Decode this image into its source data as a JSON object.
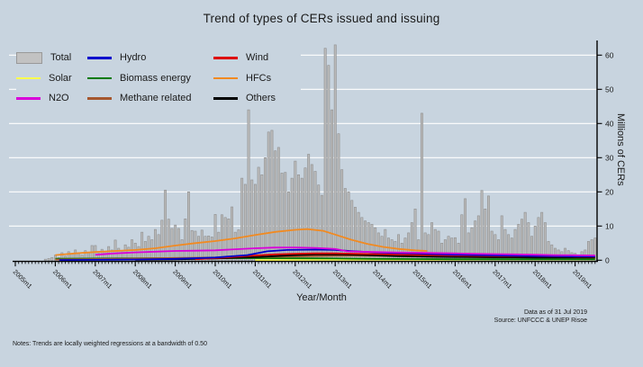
{
  "title": "Trend of types of CERs issued and issuing",
  "background_color": "#c8d4df",
  "text_color": "#1a1a1a",
  "gridline_color": "#ffffff",
  "legend": {
    "items": [
      {
        "label": "Total",
        "type": "box",
        "color": "#c2c2c2",
        "border": "#999999"
      },
      {
        "label": "Hydro",
        "type": "line",
        "color": "#0000cc"
      },
      {
        "label": "Wind",
        "type": "line",
        "color": "#dd0000"
      },
      {
        "label": "Solar",
        "type": "line",
        "color": "#ffff4d"
      },
      {
        "label": "Biomass energy",
        "type": "line",
        "color": "#007a00"
      },
      {
        "label": "HFCs",
        "type": "line",
        "color": "#f18a21"
      },
      {
        "label": "N2O",
        "type": "line",
        "color": "#d900d9"
      },
      {
        "label": "Methane related",
        "type": "line",
        "color": "#a5572e"
      },
      {
        "label": "Others",
        "type": "line",
        "color": "#000000"
      }
    ]
  },
  "footnotes": {
    "notes": "Notes: Trends are locally weighted regressions at a bandwidth of 0.50",
    "data_as_of": "Data as of 31 Jul 2019",
    "source": "Source: UNFCCC & UNEP Risoe"
  },
  "chart_data": {
    "type": "bar",
    "subtype": "monthly bars with lowess trend lines",
    "title": "Trend of types of CERs issued and issuing",
    "xlabel": "Year/Month",
    "ylabel": "Millions of CERs",
    "y_axis": {
      "side": "right",
      "ticks": [
        0,
        10,
        20,
        30,
        40,
        50,
        60
      ],
      "ylim": [
        0,
        63
      ]
    },
    "x_axis": {
      "tick_labels": [
        "2005m1",
        "2006m1",
        "2007m1",
        "2008m1",
        "2009m1",
        "2010m1",
        "2011m1",
        "2012m1",
        "2013m1",
        "2014m1",
        "2015m1",
        "2016m1",
        "2017m1",
        "2018m1",
        "2019m1"
      ],
      "minor_ticks": "monthly",
      "range_start": "2005m1",
      "range_end": "2019m7"
    },
    "bars": {
      "name": "Total",
      "start": "2005m1",
      "frequency": "monthly",
      "fill": "#bababa",
      "border": "#8f8f8f",
      "values": [
        0,
        0,
        0,
        0,
        0,
        0,
        0,
        0,
        0,
        0.3,
        0.5,
        0.8,
        1.5,
        0.8,
        2.2,
        1.2,
        2.5,
        1.8,
        3,
        2,
        1.5,
        2.8,
        2.2,
        4.3,
        4.3,
        2,
        3.2,
        2.5,
        4,
        3,
        5.9,
        3.5,
        2.8,
        4.5,
        3.8,
        6,
        5,
        4,
        8.2,
        5.5,
        7,
        6,
        9,
        7.5,
        11.7,
        20.5,
        12,
        9.3,
        10.3,
        9.3,
        6,
        12.1,
        20,
        8.7,
        8.5,
        7,
        8.8,
        7,
        7.1,
        6.8,
        13.4,
        8.2,
        13.3,
        12.5,
        12.1,
        15.6,
        8.2,
        8.9,
        24,
        22.2,
        44,
        23.5,
        22.2,
        27.2,
        25,
        30,
        37.5,
        38,
        32,
        33,
        25.5,
        25.7,
        20,
        24,
        29,
        25,
        24,
        27,
        31,
        28,
        26,
        22,
        19,
        62,
        57,
        44,
        63,
        37,
        26.5,
        21,
        20,
        17.5,
        15.5,
        14,
        12.5,
        11.5,
        11,
        10.5,
        9.5,
        8,
        7,
        9,
        6.5,
        6,
        5.5,
        7.5,
        5,
        6.5,
        8,
        11,
        15,
        6,
        43,
        8,
        7.5,
        11,
        9,
        8.5,
        5,
        6,
        7,
        6.5,
        6.6,
        5,
        13.3,
        18,
        8,
        9.5,
        11.5,
        13,
        20.4,
        15,
        18.8,
        8.5,
        7.5,
        6,
        13,
        9,
        7.5,
        6.5,
        9,
        10.5,
        12,
        14,
        11,
        7,
        10,
        12.5,
        14,
        11,
        5.5,
        4.5,
        3.5,
        3,
        2.5,
        3.5,
        2.8,
        2.2,
        2,
        1.5,
        2.5,
        3,
        5.5,
        6,
        6.5
      ]
    },
    "series": [
      {
        "name": "HFCs",
        "color": "#f18a21",
        "points": [
          [
            2006.0,
            1.5
          ],
          [
            2006.5,
            2.0
          ],
          [
            2007.0,
            2.4
          ],
          [
            2007.5,
            2.7
          ],
          [
            2008.0,
            3.0
          ],
          [
            2008.5,
            3.5
          ],
          [
            2009.0,
            4.3
          ],
          [
            2009.5,
            5.0
          ],
          [
            2010.0,
            5.6
          ],
          [
            2010.5,
            6.4
          ],
          [
            2011.0,
            7.4
          ],
          [
            2011.5,
            8.3
          ],
          [
            2012.0,
            8.9
          ],
          [
            2012.3,
            9.1
          ],
          [
            2012.7,
            8.6
          ],
          [
            2013.0,
            7.5
          ],
          [
            2013.4,
            6.0
          ],
          [
            2013.8,
            4.8
          ],
          [
            2014.2,
            3.9
          ],
          [
            2014.6,
            3.3
          ],
          [
            2015.0,
            2.9
          ],
          [
            2015.3,
            2.7
          ]
        ]
      },
      {
        "name": "Solar",
        "color": "#ffff4d",
        "points": [
          [
            2011.0,
            0.05
          ],
          [
            2012.0,
            0.08
          ],
          [
            2013.0,
            0.1
          ],
          [
            2014.0,
            0.1
          ],
          [
            2015.0,
            0.12
          ],
          [
            2016.0,
            0.15
          ],
          [
            2017.0,
            0.2
          ],
          [
            2018.0,
            0.2
          ],
          [
            2019.5,
            0.25
          ]
        ]
      },
      {
        "name": "Biomass energy",
        "color": "#007a00",
        "points": [
          [
            2006.0,
            0.45
          ],
          [
            2007.0,
            0.5
          ],
          [
            2008.0,
            0.55
          ],
          [
            2009.0,
            0.6
          ],
          [
            2010.0,
            0.6
          ],
          [
            2011.0,
            0.6
          ],
          [
            2012.0,
            0.55
          ],
          [
            2013.0,
            0.5
          ],
          [
            2014.0,
            0.4
          ],
          [
            2015.0,
            0.35
          ],
          [
            2016.0,
            0.3
          ],
          [
            2017.0,
            0.3
          ],
          [
            2018.0,
            0.3
          ],
          [
            2019.5,
            0.3
          ]
        ]
      },
      {
        "name": "Methane related",
        "color": "#a5572e",
        "points": [
          [
            2006.0,
            0.2
          ],
          [
            2007.0,
            0.35
          ],
          [
            2008.0,
            0.5
          ],
          [
            2009.0,
            0.65
          ],
          [
            2010.0,
            0.8
          ],
          [
            2011.0,
            0.95
          ],
          [
            2012.0,
            1.1
          ],
          [
            2012.5,
            1.2
          ],
          [
            2013.0,
            1.3
          ],
          [
            2013.5,
            1.35
          ],
          [
            2014.0,
            1.3
          ],
          [
            2014.5,
            1.25
          ],
          [
            2015.0,
            1.2
          ],
          [
            2015.5,
            1.1
          ],
          [
            2016.0,
            1.0
          ],
          [
            2016.5,
            0.95
          ],
          [
            2017.0,
            0.9
          ],
          [
            2017.5,
            0.9
          ],
          [
            2018.0,
            0.9
          ],
          [
            2018.5,
            0.95
          ],
          [
            2019.0,
            1.0
          ],
          [
            2019.5,
            1.0
          ]
        ]
      },
      {
        "name": "Others",
        "color": "#000000",
        "points": [
          [
            2008.0,
            0.1
          ],
          [
            2009.0,
            0.25
          ],
          [
            2010.0,
            0.5
          ],
          [
            2010.5,
            0.7
          ],
          [
            2011.0,
            0.9
          ],
          [
            2011.5,
            1.2
          ],
          [
            2012.0,
            1.5
          ],
          [
            2012.5,
            1.65
          ],
          [
            2013.0,
            1.7
          ],
          [
            2013.5,
            1.6
          ],
          [
            2014.0,
            1.4
          ],
          [
            2014.5,
            1.2
          ],
          [
            2015.0,
            1.1
          ],
          [
            2015.5,
            1.0
          ],
          [
            2016.0,
            0.95
          ],
          [
            2016.5,
            0.9
          ],
          [
            2017.0,
            0.85
          ],
          [
            2017.5,
            0.85
          ],
          [
            2018.0,
            0.8
          ],
          [
            2018.5,
            0.8
          ],
          [
            2019.0,
            0.8
          ],
          [
            2019.5,
            0.8
          ]
        ]
      },
      {
        "name": "Wind",
        "color": "#dd0000",
        "points": [
          [
            2009.5,
            0.3
          ],
          [
            2010.0,
            0.6
          ],
          [
            2010.5,
            1.0
          ],
          [
            2011.0,
            1.4
          ],
          [
            2011.5,
            1.7
          ],
          [
            2012.0,
            1.9
          ],
          [
            2012.5,
            2.0
          ],
          [
            2013.0,
            2.0
          ],
          [
            2013.5,
            1.9
          ],
          [
            2014.0,
            1.8
          ],
          [
            2014.5,
            1.7
          ],
          [
            2015.0,
            1.6
          ],
          [
            2015.5,
            1.5
          ],
          [
            2016.0,
            1.4
          ],
          [
            2016.5,
            1.3
          ],
          [
            2017.0,
            1.25
          ],
          [
            2017.5,
            1.2
          ],
          [
            2018.0,
            1.15
          ],
          [
            2018.5,
            1.1
          ],
          [
            2019.0,
            1.05
          ],
          [
            2019.5,
            1.0
          ]
        ]
      },
      {
        "name": "Hydro",
        "color": "#0000cc",
        "points": [
          [
            2006.1,
            0.05
          ],
          [
            2007.0,
            0.1
          ],
          [
            2008.0,
            0.2
          ],
          [
            2009.0,
            0.4
          ],
          [
            2010.0,
            0.8
          ],
          [
            2010.8,
            1.5
          ],
          [
            2011.3,
            2.6
          ],
          [
            2011.8,
            3.0
          ],
          [
            2012.5,
            3.1
          ],
          [
            2013.0,
            3.0
          ],
          [
            2013.5,
            2.6
          ],
          [
            2014.0,
            2.3
          ],
          [
            2014.5,
            2.1
          ],
          [
            2015.0,
            2.0
          ],
          [
            2015.5,
            1.8
          ],
          [
            2016.0,
            1.6
          ],
          [
            2016.5,
            1.5
          ],
          [
            2017.0,
            1.4
          ],
          [
            2017.5,
            1.3
          ],
          [
            2018.0,
            1.2
          ],
          [
            2018.5,
            1.15
          ],
          [
            2019.0,
            1.1
          ],
          [
            2019.5,
            1.1
          ]
        ]
      },
      {
        "name": "N2O",
        "color": "#d900d9",
        "points": [
          [
            2007.0,
            1.6
          ],
          [
            2007.5,
            2.0
          ],
          [
            2008.0,
            2.3
          ],
          [
            2008.5,
            2.5
          ],
          [
            2009.0,
            2.7
          ],
          [
            2009.5,
            2.8
          ],
          [
            2010.0,
            2.9
          ],
          [
            2010.5,
            3.2
          ],
          [
            2011.0,
            3.5
          ],
          [
            2011.5,
            3.7
          ],
          [
            2012.0,
            3.7
          ],
          [
            2012.5,
            3.6
          ],
          [
            2013.0,
            3.3
          ],
          [
            2013.3,
            2.6
          ],
          [
            2013.6,
            2.5
          ],
          [
            2014.0,
            2.4
          ],
          [
            2014.5,
            2.3
          ],
          [
            2015.0,
            2.2
          ],
          [
            2015.5,
            2.1
          ],
          [
            2016.0,
            2.0
          ],
          [
            2016.5,
            1.9
          ],
          [
            2017.0,
            1.8
          ],
          [
            2017.5,
            1.7
          ],
          [
            2018.0,
            1.6
          ],
          [
            2018.5,
            1.5
          ],
          [
            2019.0,
            1.45
          ],
          [
            2019.5,
            1.4
          ]
        ]
      }
    ]
  }
}
